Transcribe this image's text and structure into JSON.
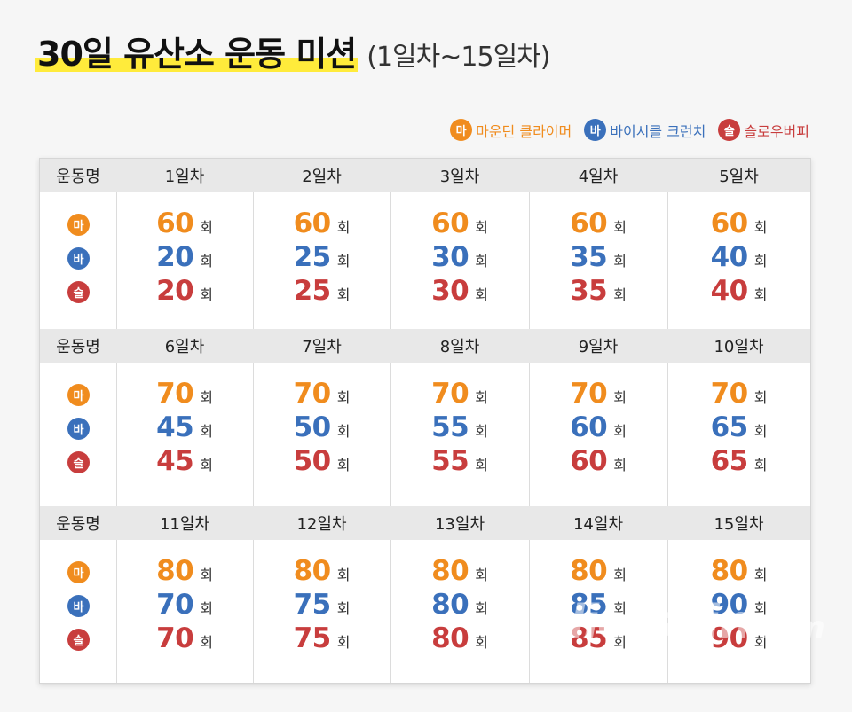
{
  "title": "30일 유산소 운동 미션",
  "subtitle": "(1일차~15일차)",
  "legend": [
    {
      "badge": "마",
      "label": "마운틴 클라이머",
      "color": "#f08c1e"
    },
    {
      "badge": "바",
      "label": "바이시클 크런치",
      "color": "#3a70bb"
    },
    {
      "badge": "슬",
      "label": "슬로우버피",
      "color": "#c83d3d"
    }
  ],
  "exercise_header": "운동명",
  "unit": "회",
  "blocks": [
    {
      "days": [
        "1일차",
        "2일차",
        "3일차",
        "4일차",
        "5일차"
      ],
      "rows": [
        [
          "60",
          "60",
          "60",
          "60",
          "60"
        ],
        [
          "20",
          "25",
          "30",
          "35",
          "40"
        ],
        [
          "20",
          "25",
          "30",
          "35",
          "40"
        ]
      ]
    },
    {
      "days": [
        "6일차",
        "7일차",
        "8일차",
        "9일차",
        "10일차"
      ],
      "rows": [
        [
          "70",
          "70",
          "70",
          "70",
          "70"
        ],
        [
          "45",
          "50",
          "55",
          "60",
          "65"
        ],
        [
          "45",
          "50",
          "55",
          "60",
          "65"
        ]
      ]
    },
    {
      "days": [
        "11일차",
        "12일차",
        "13일차",
        "14일차",
        "15일차"
      ],
      "rows": [
        [
          "80",
          "80",
          "80",
          "80",
          "80"
        ],
        [
          "70",
          "75",
          "80",
          "85",
          "90"
        ],
        [
          "70",
          "75",
          "80",
          "85",
          "90"
        ]
      ]
    }
  ],
  "watermark": "dietshin",
  "watermark_suffix": ".com"
}
